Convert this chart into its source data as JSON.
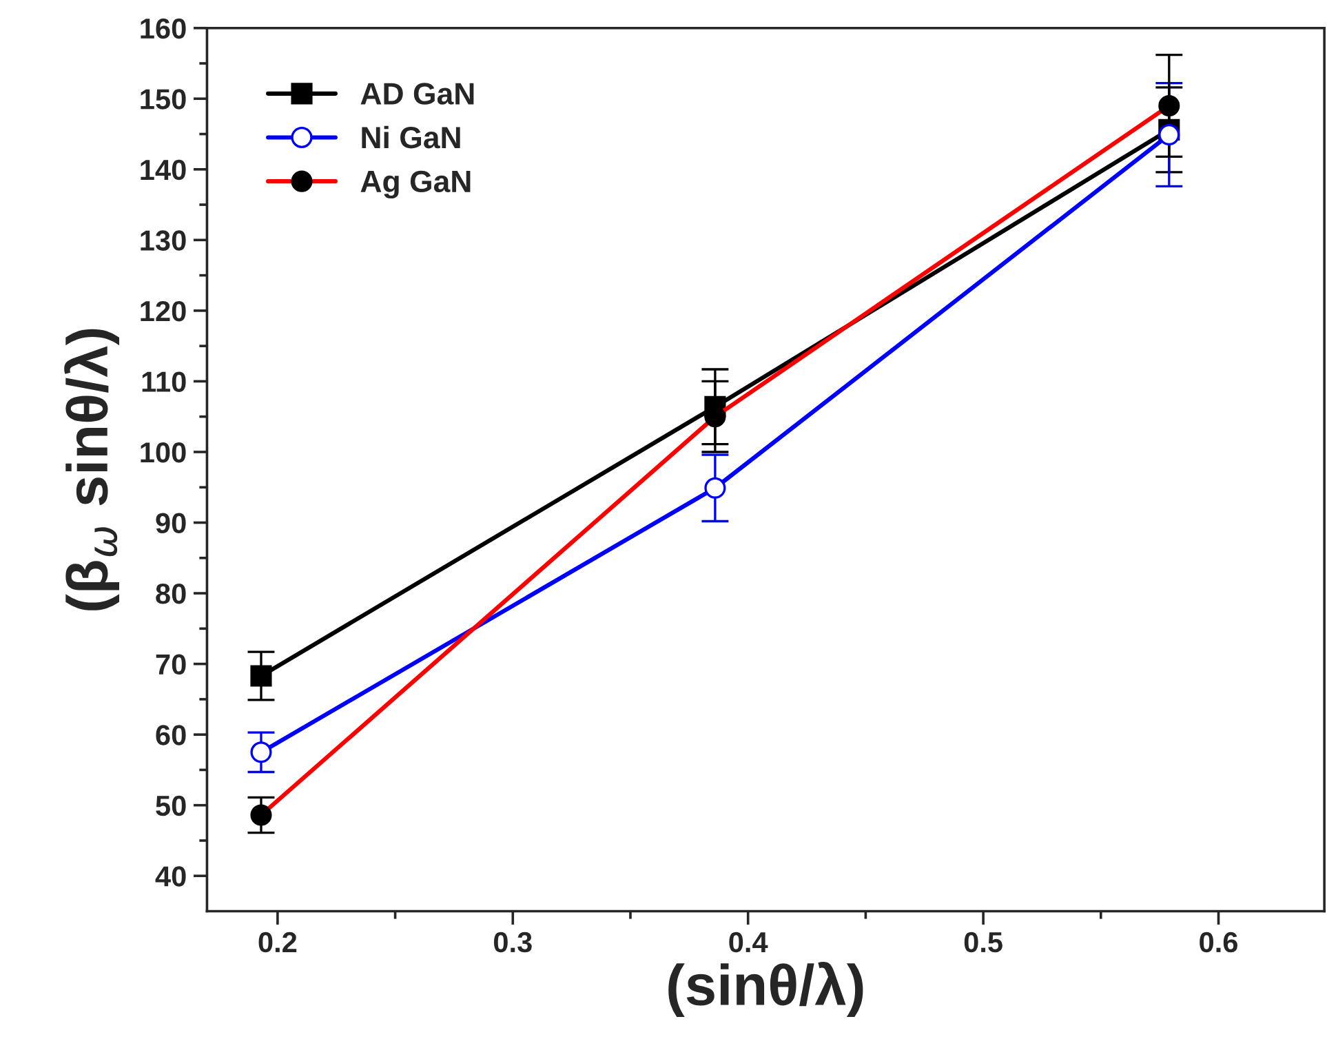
{
  "chart_data": {
    "type": "line",
    "xlabel": "(sinθ/λ)",
    "ylabel": "(β$_{ω}$ sinθ/λ)",
    "xlim": [
      0.17,
      0.645
    ],
    "xticks": [
      0.2,
      0.3,
      0.4,
      0.5,
      0.6
    ],
    "ylim": [
      35,
      160
    ],
    "yticks": [
      40,
      50,
      60,
      70,
      80,
      90,
      100,
      110,
      120,
      130,
      140,
      150,
      160
    ],
    "legend": "top left",
    "grid": false,
    "line_style": "solid",
    "series": [
      {
        "name": "AD GaN",
        "color": "#000000",
        "marker": "square",
        "x": [
          0.193,
          0.386,
          0.579
        ],
        "values": [
          68.3,
          106.4,
          145.6
        ],
        "errors": [
          3.4,
          5.3,
          6
        ]
      },
      {
        "name": "Ni GaN",
        "color": "#0000ff",
        "marker": "circle",
        "x": [
          0.193,
          0.386,
          0.579
        ],
        "values": [
          57.5,
          94.9,
          144.9
        ],
        "errors": [
          2.8,
          4.7,
          7.3
        ]
      },
      {
        "name": "Ag GaN",
        "color": "#ff0000",
        "marker": "circle",
        "x": [
          0.193,
          0.386,
          0.579
        ],
        "values": [
          48.6,
          105.0,
          149.0
        ],
        "errors": [
          2.5,
          5.0,
          7.2
        ]
      }
    ]
  }
}
